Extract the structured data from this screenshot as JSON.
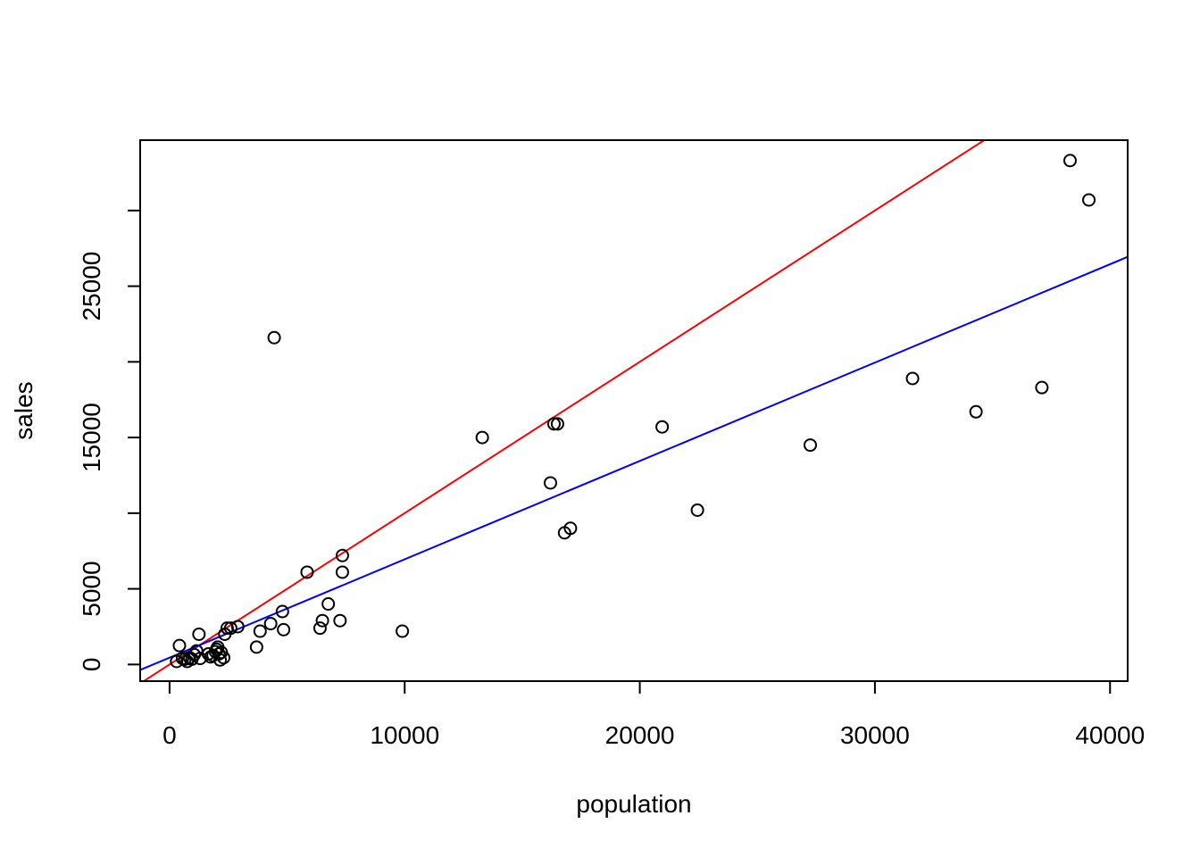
{
  "chart_data": {
    "type": "scatter",
    "title": "",
    "xlabel": "population",
    "ylabel": "sales",
    "xlim": [
      -1250,
      40750
    ],
    "ylim": [
      -1100,
      34650
    ],
    "x_ticks": [
      0,
      10000,
      20000,
      30000,
      40000
    ],
    "x_tick_labels": [
      "0",
      "10000",
      "20000",
      "30000",
      "40000"
    ],
    "y_ticks": [
      0,
      5000,
      10000,
      15000,
      20000,
      25000,
      30000
    ],
    "y_tick_labels": [
      "0",
      "5000",
      "",
      "15000",
      "",
      "25000",
      ""
    ],
    "grid": false,
    "legend": "none",
    "point_color": "#000000",
    "points": [
      [
        300,
        200
      ],
      [
        420,
        1250
      ],
      [
        550,
        400
      ],
      [
        650,
        350
      ],
      [
        750,
        200
      ],
      [
        850,
        450
      ],
      [
        950,
        350
      ],
      [
        1050,
        650
      ],
      [
        1150,
        900
      ],
      [
        1250,
        2000
      ],
      [
        1300,
        400
      ],
      [
        1650,
        700
      ],
      [
        1750,
        500
      ],
      [
        1850,
        600
      ],
      [
        1950,
        850
      ],
      [
        2000,
        1000
      ],
      [
        2050,
        1150
      ],
      [
        2100,
        700
      ],
      [
        2150,
        300
      ],
      [
        2200,
        800
      ],
      [
        2300,
        450
      ],
      [
        2350,
        2000
      ],
      [
        2450,
        2400
      ],
      [
        2600,
        2400
      ],
      [
        2900,
        2500
      ],
      [
        3700,
        1150
      ],
      [
        3850,
        2200
      ],
      [
        4300,
        2700
      ],
      [
        4450,
        21600
      ],
      [
        4800,
        3500
      ],
      [
        4850,
        2300
      ],
      [
        5850,
        6100
      ],
      [
        6400,
        2400
      ],
      [
        6500,
        2900
      ],
      [
        6750,
        4000
      ],
      [
        7250,
        2900
      ],
      [
        7350,
        6100
      ],
      [
        7350,
        7200
      ],
      [
        9900,
        2200
      ],
      [
        13300,
        15000
      ],
      [
        16200,
        12000
      ],
      [
        16350,
        15900
      ],
      [
        16500,
        15900
      ],
      [
        16800,
        8700
      ],
      [
        17050,
        9000
      ],
      [
        20950,
        15700
      ],
      [
        22450,
        10200
      ],
      [
        27250,
        14500
      ],
      [
        31600,
        18900
      ],
      [
        34300,
        16700
      ],
      [
        37100,
        18300
      ],
      [
        38300,
        33300
      ],
      [
        39100,
        30700
      ]
    ],
    "lines": [
      {
        "color": "#ff0000",
        "intercept": 0,
        "slope": 1
      },
      {
        "color": "#0000ff",
        "intercept": 450,
        "slope": 0.65
      }
    ]
  }
}
